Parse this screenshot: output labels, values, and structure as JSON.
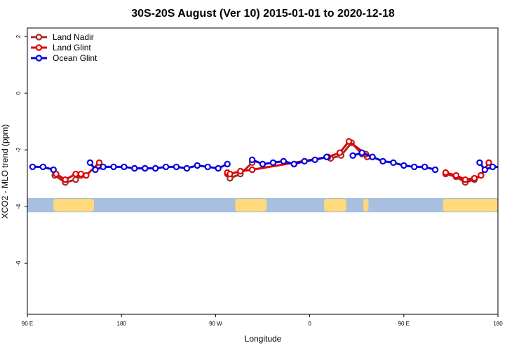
{
  "chart_data": {
    "type": "line",
    "title": "30S-20S August (Ver 10)   2015-01-01 to 2020-12-18",
    "xlabel": "Longitude",
    "ylabel": "XCO2 - MLO trend (ppm)",
    "xlim": [
      90,
      450
    ],
    "ylim": [
      -7.8,
      2.3
    ],
    "x_ticks": [
      {
        "value": 90,
        "label": "90 E"
      },
      {
        "value": 162,
        "label": "180"
      },
      {
        "value": 234,
        "label": "90 W"
      },
      {
        "value": 306,
        "label": "0"
      },
      {
        "value": 378,
        "label": "90 E"
      },
      {
        "value": 450,
        "label": "180"
      }
    ],
    "y_ticks": [
      {
        "value": 2,
        "label": "2"
      },
      {
        "value": 0,
        "label": "0"
      },
      {
        "value": -2,
        "label": "-2"
      },
      {
        "value": -4,
        "label": "-4"
      },
      {
        "value": -6,
        "label": "-6"
      }
    ],
    "grid": false,
    "legend_position": "top-left",
    "series": [
      {
        "name": "Land Nadir",
        "color": "#a52a2a",
        "segments": [
          [
            [
              111,
              -2.9
            ],
            [
              119,
              -3.15
            ],
            [
              127,
              -3.05
            ],
            [
              131,
              -2.9
            ]
          ],
          [
            [
              243,
              -2.85
            ],
            [
              245,
              -3.0
            ],
            [
              253,
              -2.85
            ],
            [
              262,
              -2.45
            ]
          ],
          [
            [
              322,
              -2.3
            ],
            [
              330,
              -2.2
            ],
            [
              338,
              -1.75
            ],
            [
              346,
              -2.15
            ],
            [
              350,
              -2.25
            ]
          ],
          [
            [
              410,
              -2.85
            ],
            [
              418,
              -2.95
            ],
            [
              425,
              -3.15
            ],
            [
              432,
              -3.05
            ],
            [
              437,
              -2.9
            ]
          ]
        ]
      },
      {
        "name": "Land Glint",
        "color": "#e00000",
        "segments": [
          [
            [
              112,
              -2.85
            ],
            [
              119,
              -3.05
            ],
            [
              127,
              -2.85
            ],
            [
              131,
              -2.85
            ],
            [
              135,
              -2.9
            ],
            [
              145,
              -2.45
            ]
          ],
          [
            [
              243,
              -2.8
            ],
            [
              245,
              -2.85
            ],
            [
              253,
              -2.75
            ],
            [
              262,
              -2.7
            ],
            [
              320,
              -2.25
            ],
            [
              329,
              -2.1
            ],
            [
              336,
              -1.7
            ],
            [
              349,
              -2.15
            ]
          ],
          [
            [
              410,
              -2.8
            ],
            [
              418,
              -2.9
            ],
            [
              425,
              -3.05
            ],
            [
              432,
              -3.0
            ],
            [
              437,
              -2.9
            ],
            [
              443,
              -2.45
            ]
          ]
        ]
      },
      {
        "name": "Ocean Glint",
        "color": "#0000e0",
        "segments": [
          [
            [
              94,
              -2.6
            ],
            [
              102,
              -2.6
            ],
            [
              110,
              -2.7
            ]
          ],
          [
            [
              138,
              -2.45
            ],
            [
              142,
              -2.7
            ],
            [
              148,
              -2.6
            ],
            [
              156,
              -2.6
            ],
            [
              164,
              -2.6
            ],
            [
              172,
              -2.65
            ],
            [
              180,
              -2.65
            ],
            [
              188,
              -2.65
            ],
            [
              196,
              -2.6
            ],
            [
              204,
              -2.6
            ],
            [
              212,
              -2.65
            ],
            [
              220,
              -2.55
            ],
            [
              228,
              -2.6
            ],
            [
              236,
              -2.65
            ],
            [
              243,
              -2.5
            ]
          ],
          [
            [
              262,
              -2.35
            ],
            [
              270,
              -2.5
            ],
            [
              278,
              -2.45
            ],
            [
              286,
              -2.4
            ],
            [
              294,
              -2.5
            ],
            [
              302,
              -2.4
            ],
            [
              310,
              -2.35
            ],
            [
              319,
              -2.25
            ]
          ],
          [
            [
              339,
              -2.2
            ],
            [
              346,
              -2.1
            ],
            [
              354,
              -2.25
            ],
            [
              362,
              -2.4
            ],
            [
              370,
              -2.45
            ],
            [
              378,
              -2.55
            ],
            [
              386,
              -2.6
            ],
            [
              394,
              -2.6
            ],
            [
              402,
              -2.7
            ]
          ],
          [
            [
              436,
              -2.45
            ],
            [
              440,
              -2.7
            ],
            [
              446,
              -2.6
            ],
            [
              454,
              -2.6
            ]
          ]
        ]
      }
    ],
    "background_band": {
      "y_range": [
        -4.2,
        -3.7
      ],
      "ocean_color": "#a9bfdf",
      "land_color": "#ffd97a",
      "land_ranges": [
        [
          110,
          141
        ],
        [
          249,
          273
        ],
        [
          317,
          334
        ],
        [
          347,
          351
        ],
        [
          408,
          456
        ]
      ]
    }
  }
}
